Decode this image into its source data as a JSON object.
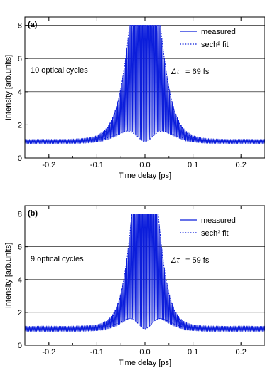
{
  "colors": {
    "trace": "#0b1ddb",
    "grid": "#000000",
    "axis": "#000000"
  },
  "chart_data": [
    {
      "type": "line",
      "panel_label": "(a)",
      "xlabel": "Time delay [ps]",
      "ylabel": "Intensity [arb.units]",
      "xlim": [
        -0.25,
        0.25
      ],
      "ylim": [
        0,
        8.5
      ],
      "xticks": [
        -0.2,
        -0.1,
        0.0,
        0.1,
        0.2
      ],
      "xtick_labels": [
        "-0.2",
        "-0.1",
        "0.0",
        "0.1",
        "0.2"
      ],
      "yticks": [
        0,
        2,
        4,
        6,
        8
      ],
      "ytick_labels": [
        "0",
        "2",
        "4",
        "6",
        "8"
      ],
      "grid": "horizontal",
      "legend_position": "top-right",
      "annotations": {
        "cycles": "10 optical cycles",
        "duration_symbol": "Δτ",
        "duration_value": "= 69 fs"
      },
      "series": [
        {
          "name": "measured",
          "style": "solid",
          "description_params": {
            "peak": 8,
            "baseline": 1,
            "fwhm_fs": 69,
            "fringe_period_fs": 2.7
          }
        },
        {
          "name": "sech² fit",
          "style": "dotted"
        }
      ]
    },
    {
      "type": "line",
      "panel_label": "(b)",
      "xlabel": "Time delay [ps]",
      "ylabel": "Intensity [arb.units]",
      "xlim": [
        -0.25,
        0.25
      ],
      "ylim": [
        0,
        8.5
      ],
      "xticks": [
        -0.2,
        -0.1,
        0.0,
        0.1,
        0.2
      ],
      "xtick_labels": [
        "-0.2",
        "-0.1",
        "0.0",
        "0.1",
        "0.2"
      ],
      "yticks": [
        0,
        2,
        4,
        6,
        8
      ],
      "ytick_labels": [
        "0",
        "2",
        "4",
        "6",
        "8"
      ],
      "grid": "horizontal",
      "legend_position": "top-right",
      "annotations": {
        "cycles": "9 optical cycles",
        "duration_symbol": "Δτ",
        "duration_value": "= 59 fs"
      },
      "series": [
        {
          "name": "measured",
          "style": "solid",
          "description_params": {
            "peak": 8,
            "baseline": 1,
            "fwhm_fs": 59,
            "fringe_period_fs": 2.7
          }
        },
        {
          "name": "sech² fit",
          "style": "dotted"
        }
      ]
    }
  ]
}
